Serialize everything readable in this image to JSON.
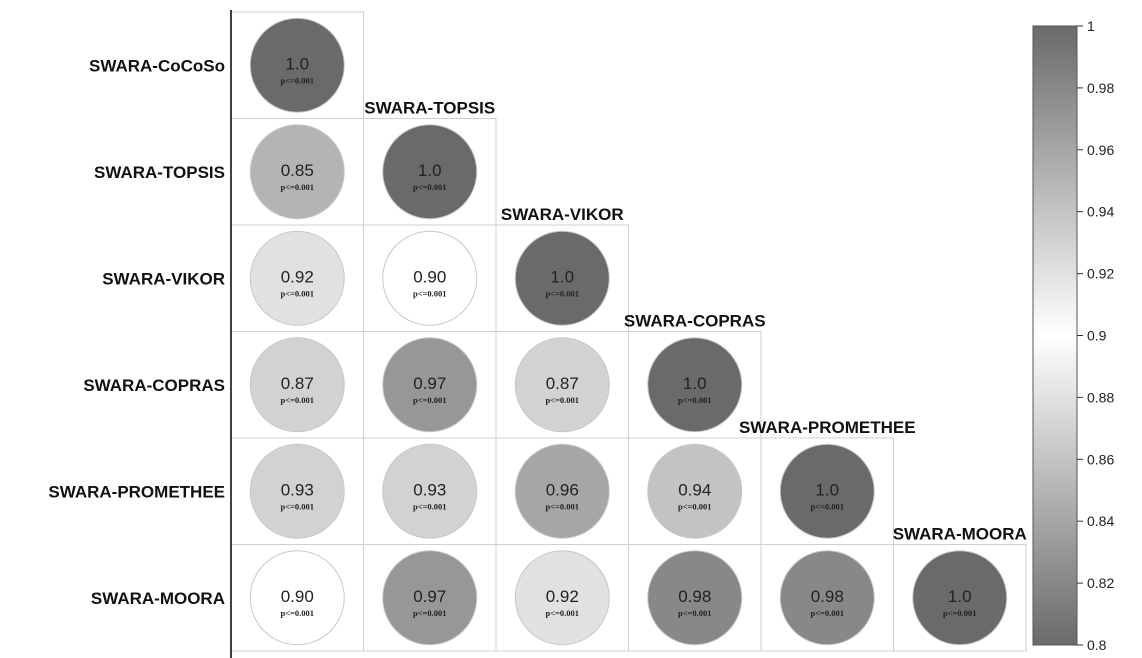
{
  "chart_data": {
    "type": "heatmap",
    "subtype": "lower-triangular correlation matrix (circle glyphs)",
    "variables": [
      "SWARA-CoCoSo",
      "SWARA-TOPSIS",
      "SWARA-VIKOR",
      "SWARA-COPRAS",
      "SWARA-PROMETHEE",
      "SWARA-MOORA"
    ],
    "matrix": [
      [
        1.0
      ],
      [
        0.85,
        1.0
      ],
      [
        0.92,
        0.9,
        1.0
      ],
      [
        0.87,
        0.97,
        0.87,
        1.0
      ],
      [
        0.93,
        0.93,
        0.96,
        0.94,
        1.0
      ],
      [
        0.9,
        0.97,
        0.92,
        0.98,
        0.98,
        1.0
      ]
    ],
    "value_labels": [
      [
        "1.0"
      ],
      [
        "0.85",
        "1.0"
      ],
      [
        "0.92",
        "0.90",
        "1.0"
      ],
      [
        "0.87",
        "0.97",
        "0.87",
        "1.0"
      ],
      [
        "0.93",
        "0.93",
        "0.96",
        "0.94",
        "1.0"
      ],
      [
        "0.90",
        "0.97",
        "0.92",
        "0.98",
        "0.98",
        "1.0"
      ]
    ],
    "p_label": "p<=0.001",
    "colorbar": {
      "range": [
        0.8,
        1
      ],
      "ticks": [
        "1",
        "0.98",
        "0.96",
        "0.94",
        "0.92",
        "0.9",
        "0.88",
        "0.86",
        "0.84",
        "0.82",
        "0.8"
      ],
      "colors": {
        "low": "#6a6a6a",
        "mid": "#ffffff",
        "high": "#6a6a6a"
      },
      "placement": "right"
    },
    "grid": true
  }
}
